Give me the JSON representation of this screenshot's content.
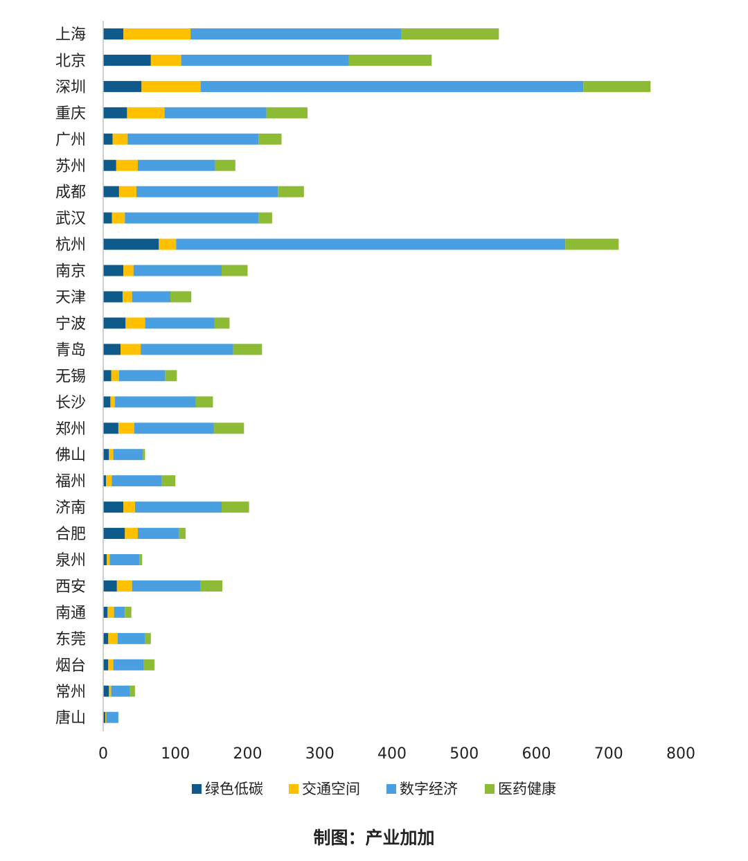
{
  "chart_data": {
    "type": "bar",
    "orientation": "horizontal",
    "stacked": true,
    "categories": [
      "上海",
      "北京",
      "深圳",
      "重庆",
      "广州",
      "苏州",
      "成都",
      "武汉",
      "杭州",
      "南京",
      "天津",
      "宁波",
      "青岛",
      "无锡",
      "长沙",
      "郑州",
      "佛山",
      "福州",
      "济南",
      "合肥",
      "泉州",
      "西安",
      "南通",
      "东莞",
      "烟台",
      "常州",
      "唐山"
    ],
    "series": [
      {
        "name": "绿色低碳",
        "color": "#0e5a8a",
        "values": [
          28,
          66,
          53,
          33,
          13,
          18,
          22,
          12,
          77,
          28,
          27,
          31,
          24,
          11,
          10,
          21,
          8,
          4,
          28,
          30,
          5,
          19,
          6,
          7,
          7,
          8,
          3
        ]
      },
      {
        "name": "交通空间",
        "color": "#ffc000",
        "values": [
          93,
          42,
          82,
          52,
          21,
          30,
          24,
          18,
          24,
          14,
          13,
          27,
          28,
          11,
          6,
          22,
          6,
          8,
          16,
          18,
          4,
          21,
          9,
          13,
          7,
          3,
          1
        ]
      },
      {
        "name": "数字经济",
        "color": "#4a9fe0",
        "values": [
          292,
          232,
          530,
          141,
          181,
          107,
          196,
          185,
          539,
          122,
          53,
          96,
          128,
          64,
          112,
          110,
          41,
          69,
          120,
          57,
          41,
          95,
          15,
          38,
          42,
          26,
          17
        ]
      },
      {
        "name": "医药健康",
        "color": "#8dbb35",
        "values": [
          135,
          115,
          93,
          57,
          32,
          28,
          36,
          19,
          74,
          36,
          29,
          21,
          40,
          16,
          24,
          42,
          3,
          19,
          38,
          9,
          4,
          30,
          9,
          8,
          15,
          7,
          0
        ]
      }
    ],
    "xlim": [
      0,
      800
    ],
    "xticks": [
      "0",
      "100",
      "200",
      "300",
      "400",
      "500",
      "600",
      "700",
      "800"
    ],
    "legend": "bottom",
    "grid": false
  },
  "credit": "制图：产业加加"
}
